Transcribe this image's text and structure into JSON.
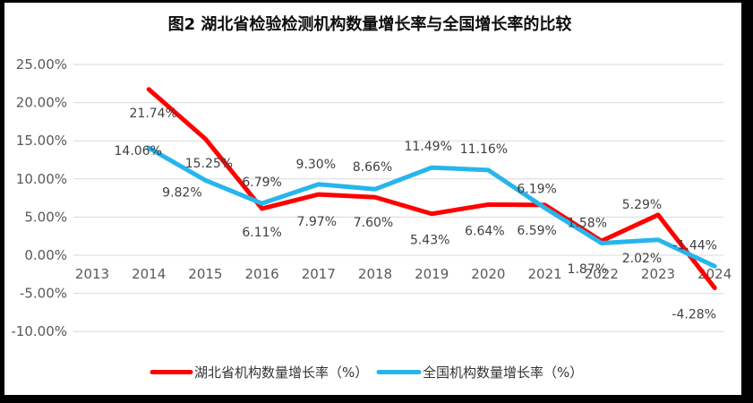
{
  "chart_data": {
    "type": "line",
    "title": "图2 湖北省检验检测机构数量增长率与全国增长率的比较",
    "categories": [
      "2013",
      "2014",
      "2015",
      "2016",
      "2017",
      "2018",
      "2019",
      "2020",
      "2021",
      "2022",
      "2023",
      "2024"
    ],
    "series": [
      {
        "name": "湖北省机构数量增长率（%）",
        "color": "#FF0000",
        "values": [
          null,
          21.74,
          15.25,
          6.11,
          7.97,
          7.6,
          5.43,
          6.64,
          6.59,
          1.87,
          5.29,
          -4.28
        ]
      },
      {
        "name": "全国机构数量增长率（%）",
        "color": "#27B5EC",
        "values": [
          null,
          14.06,
          9.82,
          6.79,
          9.3,
          8.66,
          11.49,
          11.16,
          6.19,
          1.58,
          2.02,
          -1.44
        ]
      }
    ],
    "y_axis": {
      "tick_labels": [
        "25.00%",
        "20.00%",
        "15.00%",
        "10.00%",
        "5.00%",
        "0.00%",
        "-5.00%",
        "-10.00%"
      ],
      "max": 25,
      "min": -10,
      "step": 5,
      "unit": "percent"
    },
    "grid": true,
    "legend_position": "bottom",
    "data_label_format": "0.00%",
    "colors": {
      "grid": "#D9D9D9",
      "axis_text": "#595959",
      "data_label_text": "#404040",
      "title_text": "#0d0d0d",
      "border": "#000000",
      "background": "#FFFFFF"
    }
  }
}
